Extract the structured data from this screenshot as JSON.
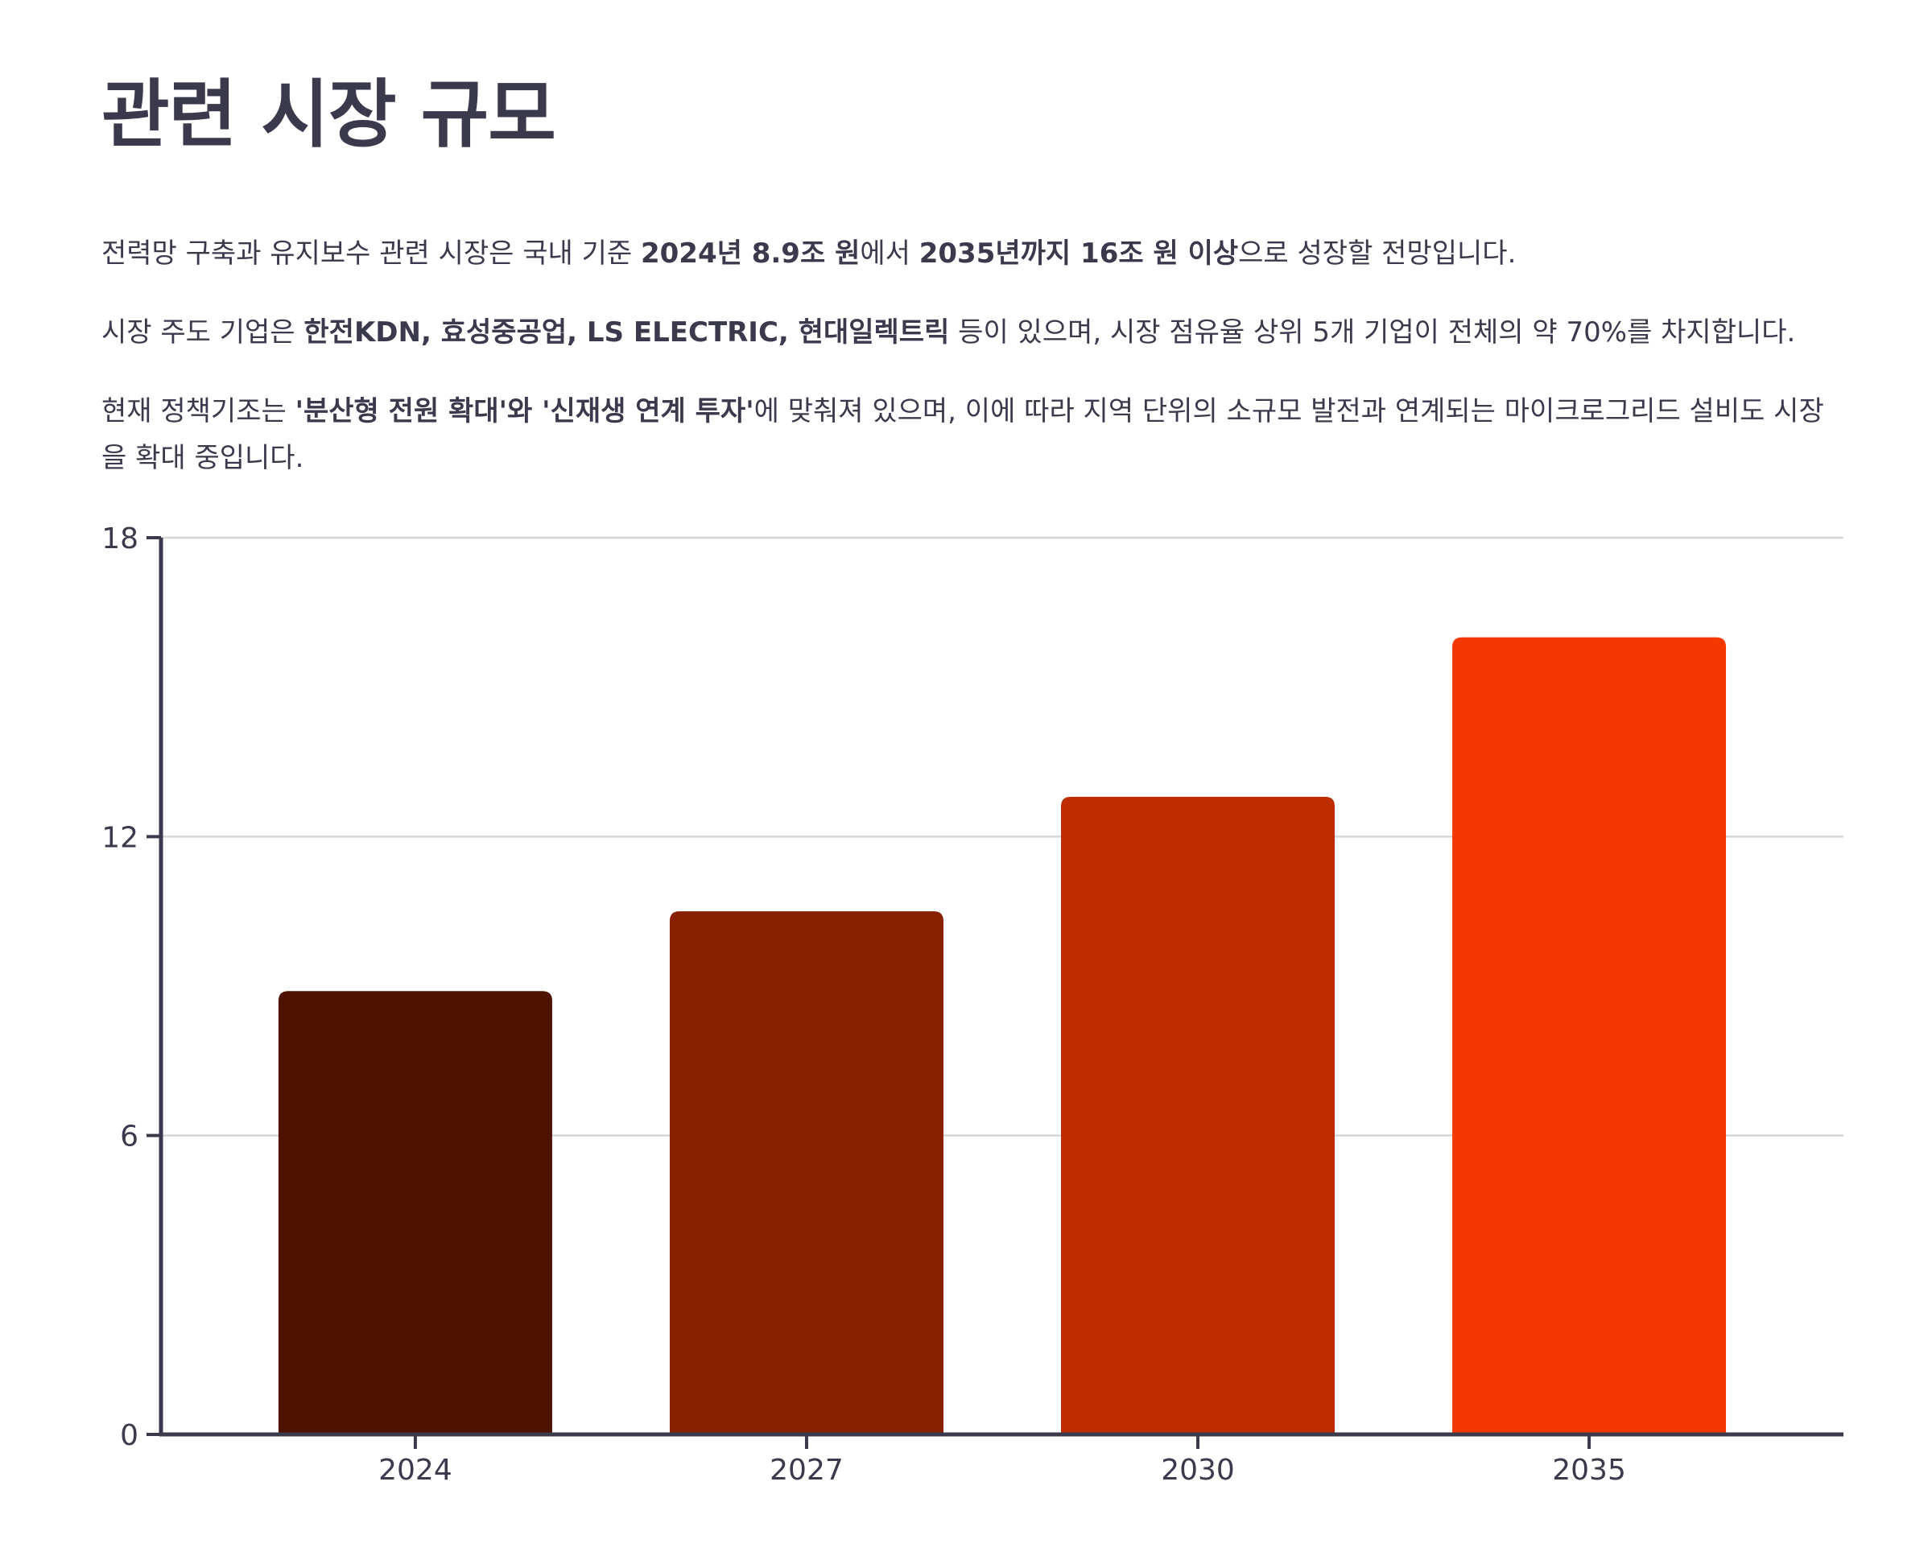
{
  "title": "관련 시장 규모",
  "paragraphs": [
    {
      "segments": [
        {
          "text": "전력망 구축과 유지보수 관련 시장은 국내 기준 ",
          "bold": false
        },
        {
          "text": "2024년 8.9조 원",
          "bold": true
        },
        {
          "text": "에서 ",
          "bold": false
        },
        {
          "text": "2035년까지 16조 원 이상",
          "bold": true
        },
        {
          "text": "으로 성장할 전망입니다.",
          "bold": false
        }
      ]
    },
    {
      "segments": [
        {
          "text": "시장 주도 기업은 ",
          "bold": false
        },
        {
          "text": "한전KDN, 효성중공업, LS ELECTRIC, 현대일렉트릭",
          "bold": true
        },
        {
          "text": " 등이 있으며, 시장 점유율 상위 5개 기업이 전체의 약 70%를 차지합니다.",
          "bold": false
        }
      ]
    },
    {
      "segments": [
        {
          "text": "현재 정책기조는 ",
          "bold": false
        },
        {
          "text": "'분산형 전원 확대'와 '신재생 연계 투자'",
          "bold": true
        },
        {
          "text": "에 맞춰져 있으며, 이에 따라 지역 단위의 소규모 발전과 연계되는 마이크로그리드 설비도 시장을 확대 중입니다.",
          "bold": false
        }
      ]
    }
  ],
  "chart_data": {
    "type": "bar",
    "title": "",
    "xlabel": "",
    "ylabel": "",
    "categories": [
      "2024",
      "2027",
      "2030",
      "2035"
    ],
    "values": [
      8.9,
      10.5,
      12.8,
      16.0
    ],
    "ylim": [
      0,
      18
    ],
    "yticks": [
      0,
      6,
      12,
      18
    ],
    "grid": true,
    "legend": "none",
    "colors": [
      "#4d1200",
      "#871f00",
      "#bd2b00",
      "#f53800"
    ]
  }
}
